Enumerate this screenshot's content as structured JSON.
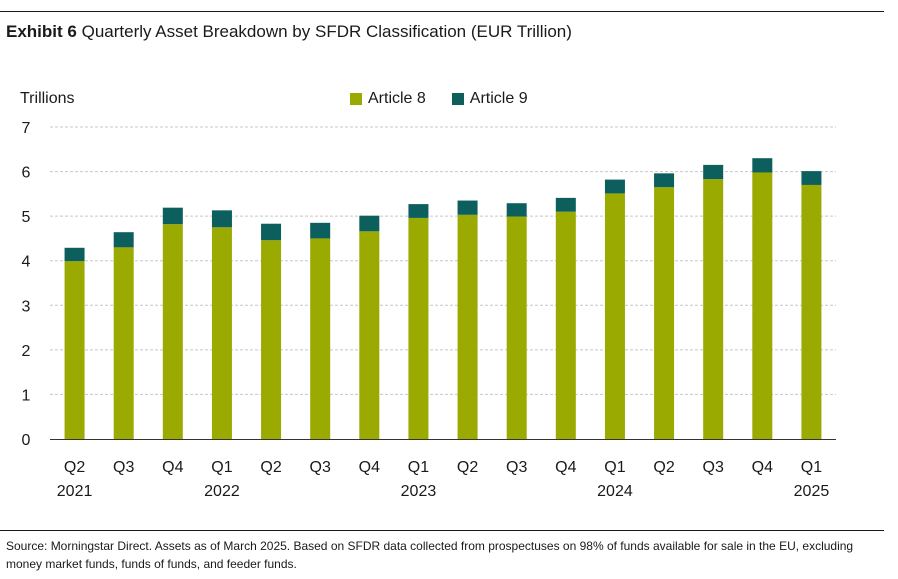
{
  "title": {
    "exhibit": "Exhibit 6",
    "text": "Quarterly Asset Breakdown by SFDR Classification (EUR Trillion)"
  },
  "source": "Source: Morningstar Direct. Assets as of March 2025. Based on SFDR data collected from prospectuses on 98% of funds available for sale in the EU, excluding money market funds, funds of funds, and feeder funds.",
  "colors": {
    "article8": "#9aaa00",
    "article9": "#0c5f5d",
    "grid": "#c8c8c8",
    "axis": "#333333"
  },
  "chart_data": {
    "type": "bar",
    "stacked": true,
    "ylabel": "Trillions",
    "ylim": [
      0,
      7
    ],
    "yticks": [
      "0",
      "1",
      "2",
      "3",
      "4",
      "5",
      "6",
      "7"
    ],
    "grid": true,
    "legend_position": "top-center",
    "categories": [
      "Q2 2021",
      "Q3 2021",
      "Q4 2021",
      "Q1 2022",
      "Q2 2022",
      "Q3 2022",
      "Q4 2022",
      "Q1 2023",
      "Q2 2023",
      "Q3 2023",
      "Q4 2023",
      "Q1 2024",
      "Q2 2024",
      "Q3 2024",
      "Q4 2024",
      "Q1 2025"
    ],
    "x_tick_quarters": [
      "Q2",
      "Q3",
      "Q4",
      "Q1",
      "Q2",
      "Q3",
      "Q4",
      "Q1",
      "Q2",
      "Q3",
      "Q4",
      "Q1",
      "Q2",
      "Q3",
      "Q4",
      "Q1"
    ],
    "x_tick_years": [
      "2021",
      "",
      "",
      "2022",
      "",
      "",
      "",
      "2023",
      "",
      "",
      "",
      "2024",
      "",
      "",
      "",
      "2025"
    ],
    "series": [
      {
        "name": "Article 8",
        "values": [
          3.99,
          4.3,
          4.82,
          4.75,
          4.46,
          4.5,
          4.66,
          4.96,
          5.03,
          4.99,
          5.1,
          5.51,
          5.65,
          5.83,
          5.98,
          5.7
        ]
      },
      {
        "name": "Article 9",
        "values": [
          0.3,
          0.34,
          0.37,
          0.38,
          0.37,
          0.35,
          0.35,
          0.31,
          0.32,
          0.3,
          0.31,
          0.31,
          0.31,
          0.32,
          0.32,
          0.31
        ]
      }
    ]
  }
}
